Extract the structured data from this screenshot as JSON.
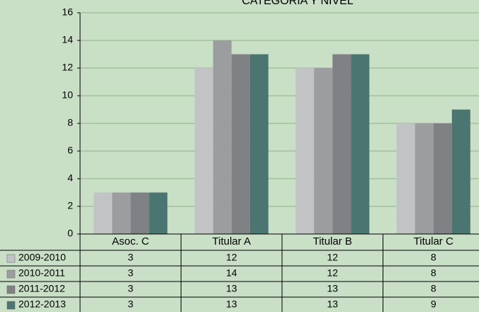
{
  "chart_data": {
    "type": "bar",
    "title": "CATEGORÍA Y NIVEL",
    "categories": [
      "Asoc. C",
      "Titular A",
      "Titular B",
      "Titular C"
    ],
    "series": [
      {
        "name": "2009-2010",
        "color": "#c1c3c5",
        "values": [
          3,
          12,
          12,
          8
        ]
      },
      {
        "name": "2010-2011",
        "color": "#9b9d9f",
        "values": [
          3,
          14,
          12,
          8
        ]
      },
      {
        "name": "2011-2012",
        "color": "#808184",
        "values": [
          3,
          13,
          13,
          8
        ]
      },
      {
        "name": "2012-2013",
        "color": "#4a7570",
        "values": [
          3,
          13,
          13,
          9
        ]
      }
    ],
    "ylim": [
      0,
      16
    ],
    "yticks": [
      0,
      2,
      4,
      6,
      8,
      10,
      12,
      14,
      16
    ],
    "grid": true
  }
}
